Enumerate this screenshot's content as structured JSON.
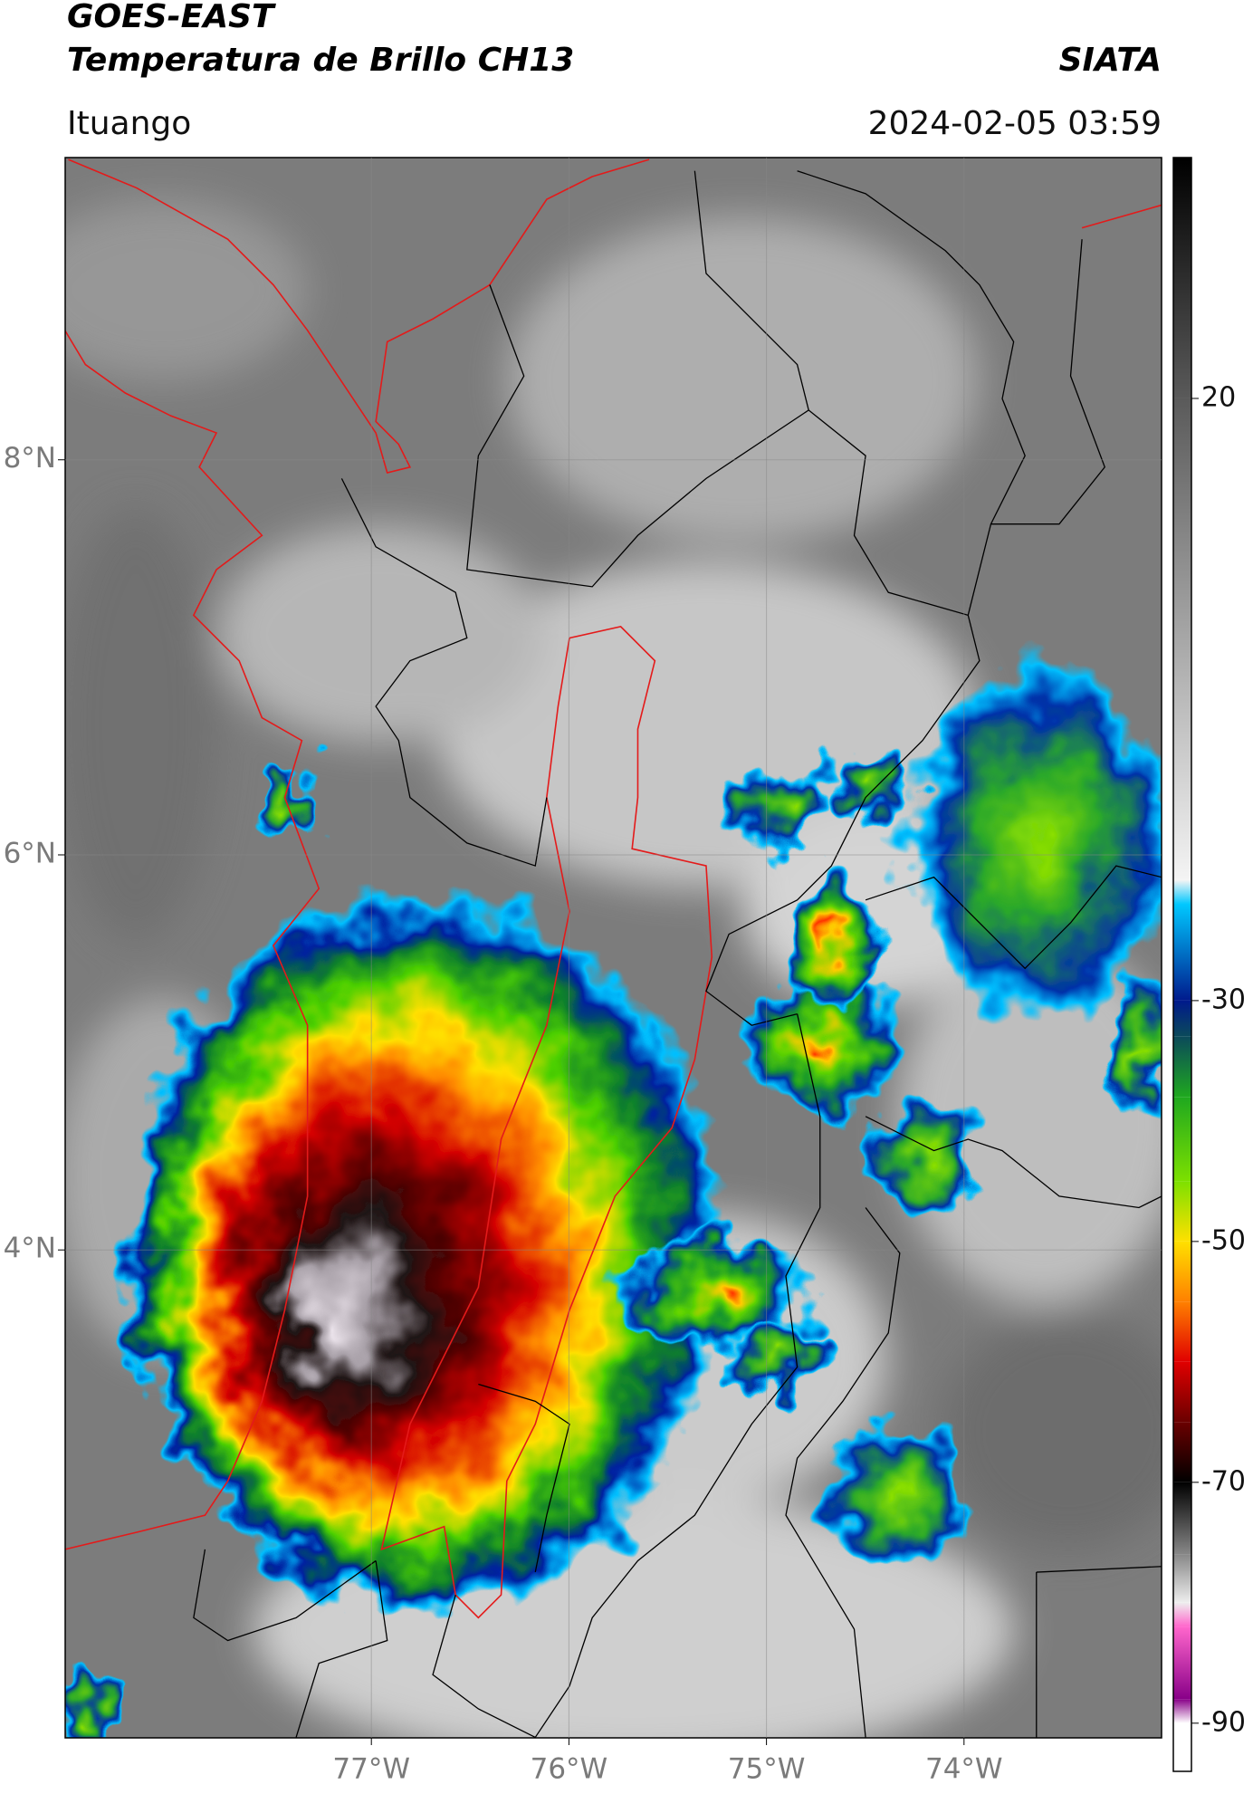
{
  "chart_data": {
    "type": "map",
    "title": "GOES-EAST",
    "subtitle": "Temperatura de Brillo CH13",
    "annotations": [
      "SIATA",
      "Ituango",
      "2024-02-05 03:59"
    ],
    "xlim": [
      -78.55,
      -73.0
    ],
    "ylim": [
      1.53,
      9.53
    ],
    "xticks": [
      {
        "value": -77,
        "label": "77°W"
      },
      {
        "value": -76,
        "label": "76°W"
      },
      {
        "value": -75,
        "label": "75°W"
      },
      {
        "value": -74,
        "label": "74°W"
      }
    ],
    "yticks": [
      {
        "value": 8,
        "label": "8°N"
      },
      {
        "value": 6,
        "label": "6°N"
      },
      {
        "value": 4,
        "label": "4°N"
      }
    ],
    "grid": true,
    "colorbar": {
      "lim": [
        -94,
        40
      ],
      "ticks": [
        -90,
        -70,
        -50,
        -30,
        20
      ],
      "colormap": [
        {
          "value": 40,
          "color": "#000000"
        },
        {
          "value": 20,
          "color": "#5a5a5a"
        },
        {
          "value": -20,
          "color": "#f4f4f4"
        },
        {
          "value": -22,
          "color": "#00c8ff"
        },
        {
          "value": -30,
          "color": "#001a8c"
        },
        {
          "value": -33,
          "color": "#0b4a5a"
        },
        {
          "value": -38,
          "color": "#1fa81f"
        },
        {
          "value": -45,
          "color": "#7de000"
        },
        {
          "value": -50,
          "color": "#ffe000"
        },
        {
          "value": -55,
          "color": "#ff8000"
        },
        {
          "value": -60,
          "color": "#e00000"
        },
        {
          "value": -65,
          "color": "#6a0000"
        },
        {
          "value": -70,
          "color": "#000000"
        },
        {
          "value": -76,
          "color": "#888888"
        },
        {
          "value": -80,
          "color": "#eeeeee"
        },
        {
          "value": -82,
          "color": "#ff66cc"
        },
        {
          "value": -88,
          "color": "#880088"
        },
        {
          "value": -90,
          "color": "#ffffff"
        },
        {
          "value": -94,
          "color": "#ffffff"
        }
      ]
    }
  }
}
